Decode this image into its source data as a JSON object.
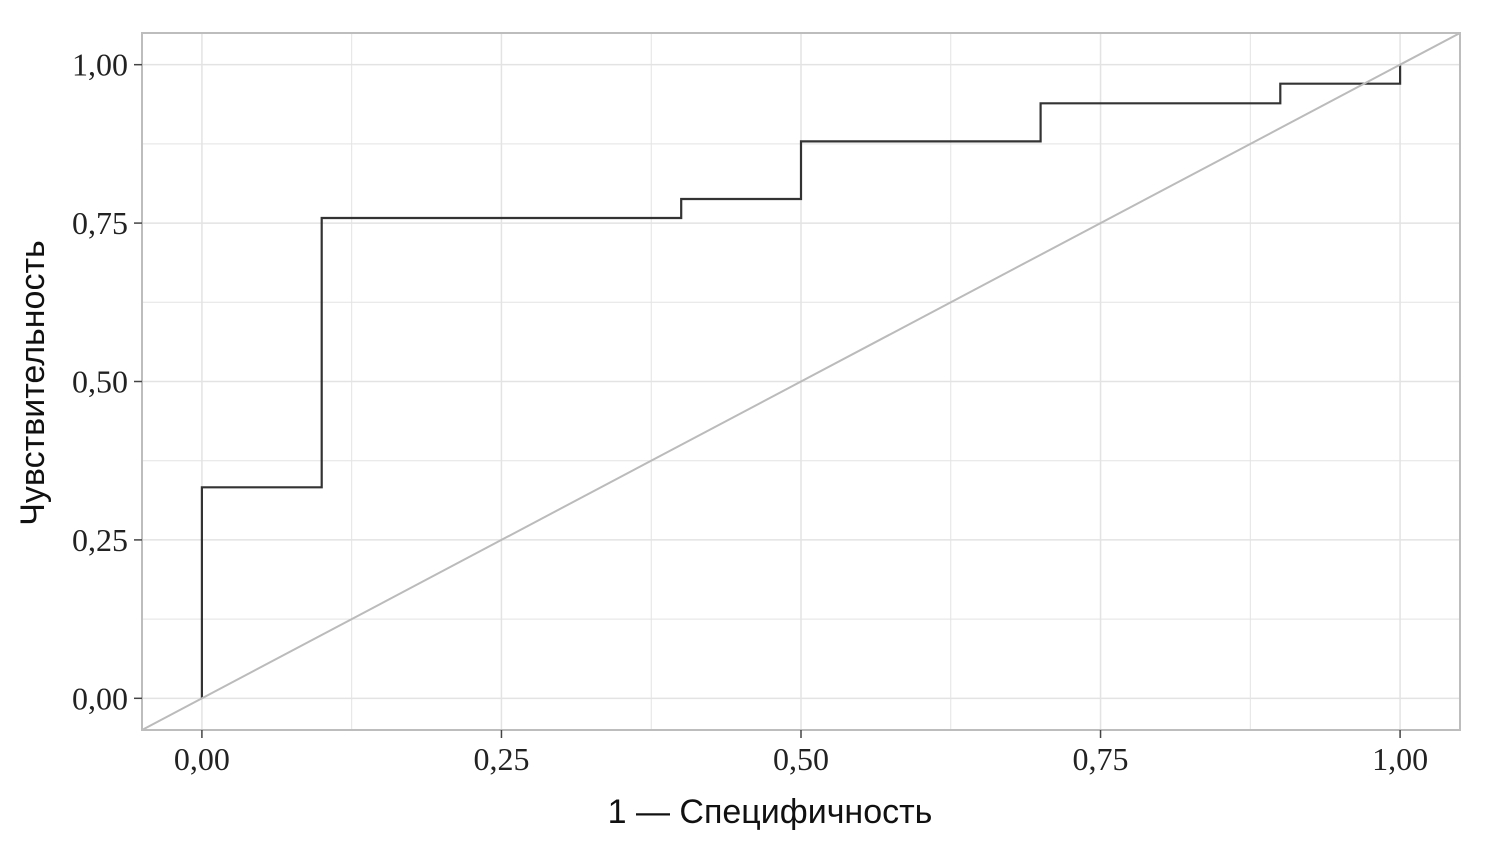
{
  "chart_data": {
    "type": "line",
    "xlabel": "1 — Специфичность",
    "ylabel": "Чувствительность",
    "xlim": [
      -0.05,
      1.05
    ],
    "ylim": [
      -0.05,
      1.05
    ],
    "grid": true,
    "x_ticks": [
      {
        "value": 0,
        "label": "0,00"
      },
      {
        "value": 0.25,
        "label": "0,25"
      },
      {
        "value": 0.5,
        "label": "0,50"
      },
      {
        "value": 0.75,
        "label": "0,75"
      },
      {
        "value": 1,
        "label": "1,00"
      }
    ],
    "y_ticks": [
      {
        "value": 0,
        "label": "0,00"
      },
      {
        "value": 0.25,
        "label": "0,25"
      },
      {
        "value": 0.5,
        "label": "0,50"
      },
      {
        "value": 0.75,
        "label": "0,75"
      },
      {
        "value": 1,
        "label": "1,00"
      }
    ],
    "series": [
      {
        "style": "step",
        "color": "#333333",
        "points": [
          [
            0,
            0
          ],
          [
            0,
            0.333
          ],
          [
            0.1,
            0.333
          ],
          [
            0.1,
            0.758
          ],
          [
            0.4,
            0.758
          ],
          [
            0.4,
            0.788
          ],
          [
            0.5,
            0.788
          ],
          [
            0.5,
            0.879
          ],
          [
            0.7,
            0.879
          ],
          [
            0.7,
            0.939
          ],
          [
            0.9,
            0.939
          ],
          [
            0.9,
            0.97
          ],
          [
            1,
            0.97
          ],
          [
            1,
            1
          ]
        ]
      },
      {
        "style": "reference-diagonal",
        "color": "#bbbbbb",
        "points": [
          [
            -0.05,
            -0.05
          ],
          [
            1.05,
            1.05
          ]
        ]
      }
    ],
    "colors": {
      "grid": "#e3e3e3",
      "frame": "#bdbdbd",
      "roc": "#333333",
      "diagonal": "#bbbbbb"
    }
  }
}
